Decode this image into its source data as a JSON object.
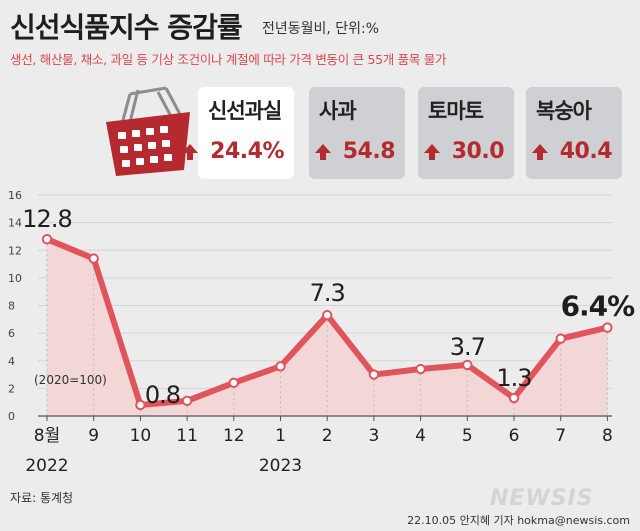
{
  "header": {
    "title": "신선식품지수 증감률",
    "unit": "전년동월비, 단위:%",
    "subtitle": "생선, 해산물, 채소, 과일 등 기상 조건이나 계절에 따라 가격 변동이 큰 55개 품목 물가"
  },
  "cards": [
    {
      "name": "신선과실",
      "value": "24.4%"
    },
    {
      "name": "사과",
      "value": "54.8"
    },
    {
      "name": "토마토",
      "value": "30.0"
    },
    {
      "name": "복숭아",
      "value": "40.4"
    }
  ],
  "colors": {
    "line": "#e0545b",
    "area": "#f3d6d6",
    "accent": "#b52a2f",
    "card_bg": "#cfd0d3",
    "highlight_card_bg": "#ffffff"
  },
  "chart_data": {
    "type": "area",
    "title": "신선식품지수 증감률",
    "categories": [
      "8월",
      "9",
      "10",
      "11",
      "12",
      "1",
      "2",
      "3",
      "4",
      "5",
      "6",
      "7",
      "8"
    ],
    "year_labels": [
      {
        "label": "2022",
        "at": "8월"
      },
      {
        "label": "2023",
        "at": "1"
      }
    ],
    "values": [
      12.8,
      11.4,
      0.8,
      1.1,
      2.4,
      3.6,
      7.3,
      3.0,
      3.4,
      3.7,
      1.3,
      5.6,
      6.4
    ],
    "labels": [
      {
        "index": 0,
        "text": "12.8"
      },
      {
        "index": 2,
        "text": "0.8"
      },
      {
        "index": 6,
        "text": "7.3"
      },
      {
        "index": 9,
        "text": "3.7"
      },
      {
        "index": 10,
        "text": "1.3"
      },
      {
        "index": 12,
        "text": "6.4%"
      }
    ],
    "yticks": [
      0,
      2,
      4,
      6,
      8,
      10,
      12,
      14,
      16
    ],
    "ylim": [
      0,
      16
    ],
    "xlabel": "",
    "ylabel": "",
    "annotation": "(2020=100)"
  },
  "footer": {
    "source": "자료: 통계청",
    "credit": "22.10.05 안지혜 기자 hokma@newsis.com",
    "watermark": "NEWSIS"
  }
}
